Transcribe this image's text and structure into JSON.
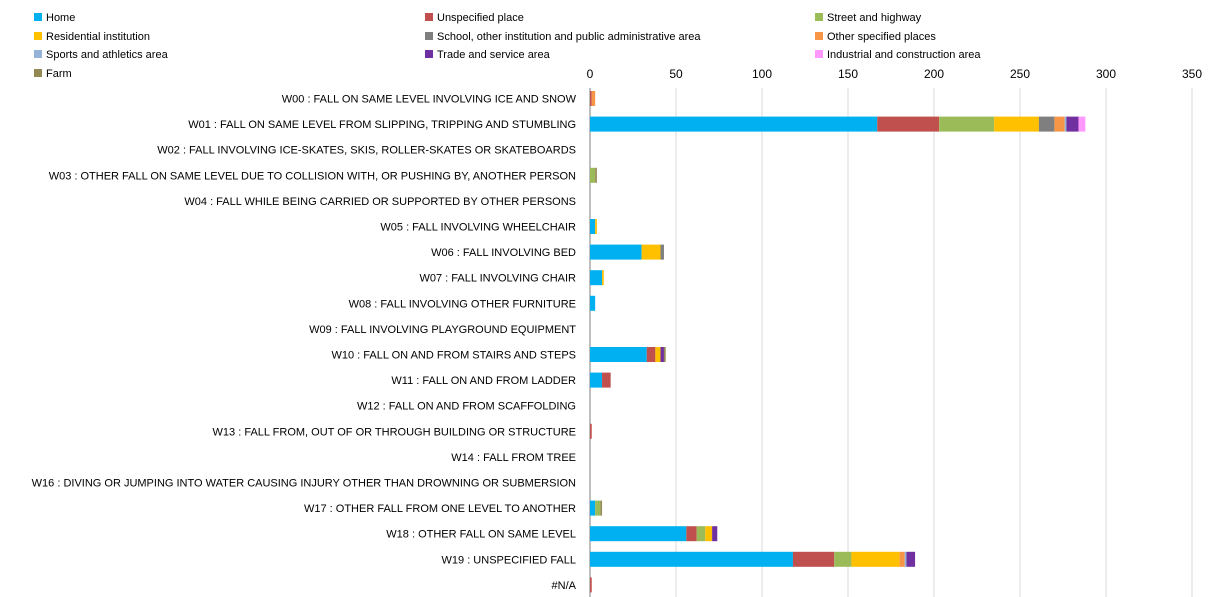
{
  "colors": {
    "Home": "#00b0f0",
    "Unspecified place": "#c0504d",
    "Street and highway": "#9bbb59",
    "Residential institution": "#ffc000",
    "School, other institution and public administrative area": "#7f7f7f",
    "Other specified places": "#f79646",
    "Sports and athletics area": "#95b3d7",
    "Trade and service area": "#7030a0",
    "Industrial and construction area": "#ff99ff",
    "Farm": "#938953"
  },
  "chart_data": {
    "type": "bar",
    "orientation": "horizontal",
    "stacked": true,
    "title": "",
    "xlabel": "",
    "ylabel": "",
    "xlim": [
      0,
      350
    ],
    "x_ticks": [
      0,
      50,
      100,
      150,
      200,
      250,
      300,
      350
    ],
    "grid": true,
    "legend_position": "top",
    "categories": [
      "W00 : FALL ON SAME LEVEL INVOLVING ICE AND SNOW",
      "W01 : FALL ON SAME LEVEL FROM SLIPPING, TRIPPING AND STUMBLING",
      "W02 : FALL INVOLVING ICE-SKATES, SKIS, ROLLER-SKATES OR SKATEBOARDS",
      "W03 : OTHER FALL ON SAME LEVEL DUE TO COLLISION WITH, OR PUSHING BY, ANOTHER PERSON",
      "W04 : FALL WHILE BEING CARRIED OR SUPPORTED BY OTHER PERSONS",
      "W05 : FALL INVOLVING WHEELCHAIR",
      "W06 : FALL INVOLVING BED",
      "W07 : FALL INVOLVING CHAIR",
      "W08 : FALL INVOLVING OTHER FURNITURE",
      "W09 : FALL INVOLVING PLAYGROUND EQUIPMENT",
      "W10 : FALL ON AND FROM STAIRS AND STEPS",
      "W11 : FALL ON AND FROM LADDER",
      "W12 : FALL ON AND FROM SCAFFOLDING",
      "W13 : FALL FROM, OUT OF OR THROUGH BUILDING OR STRUCTURE",
      "W14 : FALL FROM TREE",
      "W16 : DIVING OR JUMPING INTO WATER CAUSING INJURY OTHER THAN DROWNING OR SUBMERSION",
      "W17 : OTHER FALL FROM ONE LEVEL TO ANOTHER",
      "W18 : OTHER FALL ON SAME LEVEL",
      "W19 : UNSPECIFIED FALL",
      "#N/A"
    ],
    "series": [
      {
        "name": "Home",
        "values": [
          0,
          167,
          0,
          0,
          0,
          3,
          30,
          7,
          3,
          0,
          33,
          7,
          0,
          0,
          0,
          0,
          3,
          56,
          118,
          0
        ]
      },
      {
        "name": "Unspecified place",
        "values": [
          1,
          36,
          0,
          0,
          0,
          0,
          0,
          0,
          0,
          0,
          5,
          5,
          0,
          1,
          0,
          0,
          0,
          6,
          24,
          1
        ]
      },
      {
        "name": "Street and highway",
        "values": [
          0,
          32,
          0,
          3,
          0,
          0,
          0,
          0,
          0,
          0,
          0,
          0,
          0,
          0,
          0,
          0,
          3,
          5,
          10,
          0
        ]
      },
      {
        "name": "Residential institution",
        "values": [
          0,
          26,
          0,
          0,
          0,
          1,
          11,
          1,
          0,
          0,
          3,
          0,
          0,
          0,
          0,
          0,
          0,
          4,
          28,
          0
        ]
      },
      {
        "name": "School, other institution and public administrative area",
        "values": [
          0,
          9,
          0,
          0,
          0,
          0,
          2,
          0,
          0,
          0,
          0,
          0,
          0,
          0,
          0,
          0,
          0,
          0,
          0,
          0
        ]
      },
      {
        "name": "Other specified places",
        "values": [
          2,
          6,
          0,
          0,
          0,
          0,
          0,
          0,
          0,
          0,
          0,
          0,
          0,
          0,
          0,
          0,
          0,
          0,
          3,
          0
        ]
      },
      {
        "name": "Sports and athletics area",
        "values": [
          0,
          1,
          0,
          0,
          0,
          0,
          0,
          0,
          0,
          0,
          0,
          0,
          0,
          0,
          0,
          0,
          0,
          0,
          1,
          0
        ]
      },
      {
        "name": "Trade and service area",
        "values": [
          0,
          7,
          0,
          0,
          0,
          0,
          0,
          0,
          0,
          0,
          2,
          0,
          0,
          0,
          0,
          0,
          0,
          3,
          5,
          0
        ]
      },
      {
        "name": "Industrial and construction area",
        "values": [
          0,
          4,
          0,
          0,
          0,
          0,
          0,
          0,
          0,
          0,
          0,
          0,
          0,
          0,
          0,
          0,
          0,
          0,
          0,
          0
        ]
      },
      {
        "name": "Farm",
        "values": [
          0,
          0,
          0,
          1,
          0,
          0,
          0,
          0,
          0,
          0,
          1,
          0,
          0,
          0,
          0,
          0,
          1,
          0,
          0,
          0
        ]
      }
    ]
  }
}
